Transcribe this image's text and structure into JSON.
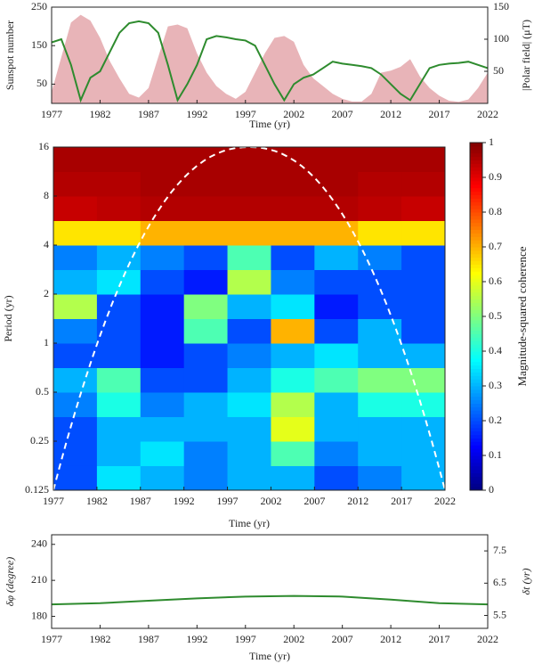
{
  "chart_data": [
    {
      "type": "line",
      "x": [
        1977,
        1978,
        1979,
        1980,
        1981,
        1982,
        1983,
        1984,
        1985,
        1986,
        1987,
        1988,
        1989,
        1990,
        1991,
        1992,
        1993,
        1994,
        1995,
        1996,
        1997,
        1998,
        1999,
        2000,
        2001,
        2002,
        2003,
        2004,
        2005,
        2006,
        2007,
        2008,
        2009,
        2010,
        2011,
        2012,
        2013,
        2014,
        2015,
        2016,
        2017,
        2018,
        2019,
        2020,
        2021,
        2022
      ],
      "series": [
        {
          "name": "Sunspot number",
          "color": "#e8b4b8",
          "fill": true,
          "values": [
            30,
            120,
            210,
            230,
            215,
            170,
            110,
            65,
            25,
            15,
            40,
            120,
            200,
            205,
            195,
            130,
            80,
            45,
            25,
            12,
            30,
            80,
            130,
            170,
            175,
            160,
            100,
            65,
            45,
            25,
            12,
            5,
            5,
            25,
            80,
            85,
            95,
            115,
            70,
            40,
            20,
            7,
            4,
            10,
            40,
            80
          ]
        },
        {
          "name": "|Polar field| (μT)",
          "color": "#2e8b2e",
          "axis": "y2",
          "values": [
            95,
            100,
            60,
            5,
            40,
            50,
            80,
            110,
            125,
            128,
            125,
            110,
            60,
            5,
            30,
            60,
            100,
            105,
            103,
            100,
            98,
            90,
            60,
            30,
            5,
            30,
            40,
            45,
            55,
            65,
            62,
            60,
            58,
            55,
            45,
            30,
            15,
            5,
            30,
            55,
            60,
            62,
            63,
            65,
            60,
            55
          ]
        }
      ],
      "xlabel": "Time (yr)",
      "xlim": [
        1977,
        2022
      ],
      "xticks": [
        1977,
        1982,
        1987,
        1992,
        1997,
        2002,
        2007,
        2012,
        2017,
        2022
      ],
      "ylim": [
        0,
        250
      ],
      "yticks": [
        50,
        150,
        250
      ],
      "y2lim": [
        0,
        150
      ],
      "y2ticks": [
        50,
        100,
        150
      ]
    },
    {
      "type": "heatmap",
      "xlabel": "Time (yr)",
      "ylabel": "Period (yr)",
      "xlim": [
        1977,
        2022
      ],
      "xticks": [
        1977,
        1982,
        1987,
        1992,
        1997,
        2002,
        2007,
        2012,
        2017,
        2022
      ],
      "xedges": [
        1977,
        1982,
        1987,
        1992,
        1997,
        2002,
        2007,
        2012,
        2017,
        2022
      ],
      "ylim": [
        0.125,
        16
      ],
      "log_scale": true,
      "yticks": [
        0.125,
        0.25,
        0.5,
        1,
        2,
        4,
        8,
        16
      ],
      "yedges": [
        0.125,
        0.1768,
        0.25,
        0.3536,
        0.5,
        0.7071,
        1,
        1.4142,
        2,
        2.8284,
        4,
        5.6569,
        8,
        11.3137,
        16
      ],
      "z": [
        [
          0.2,
          0.35,
          0.3,
          0.25,
          0.3,
          0.3,
          0.2,
          0.25,
          0.3
        ],
        [
          0.2,
          0.3,
          0.35,
          0.25,
          0.3,
          0.45,
          0.25,
          0.3,
          0.3
        ],
        [
          0.2,
          0.3,
          0.3,
          0.3,
          0.3,
          0.6,
          0.3,
          0.3,
          0.3
        ],
        [
          0.25,
          0.4,
          0.25,
          0.3,
          0.35,
          0.55,
          0.3,
          0.4,
          0.4
        ],
        [
          0.3,
          0.45,
          0.2,
          0.2,
          0.3,
          0.4,
          0.45,
          0.5,
          0.5
        ],
        [
          0.2,
          0.2,
          0.15,
          0.2,
          0.25,
          0.3,
          0.35,
          0.3,
          0.3
        ],
        [
          0.25,
          0.2,
          0.15,
          0.45,
          0.2,
          0.7,
          0.2,
          0.3,
          0.2
        ],
        [
          0.55,
          0.2,
          0.15,
          0.5,
          0.3,
          0.35,
          0.15,
          0.2,
          0.2
        ],
        [
          0.3,
          0.35,
          0.2,
          0.15,
          0.55,
          0.25,
          0.2,
          0.2,
          0.2
        ],
        [
          0.25,
          0.3,
          0.25,
          0.2,
          0.45,
          0.2,
          0.3,
          0.25,
          0.2
        ],
        [
          0.65,
          0.65,
          0.7,
          0.7,
          0.7,
          0.7,
          0.7,
          0.65,
          0.65
        ],
        [
          0.93,
          0.94,
          0.95,
          0.95,
          0.95,
          0.95,
          0.95,
          0.94,
          0.93
        ],
        [
          0.95,
          0.95,
          0.96,
          0.96,
          0.96,
          0.96,
          0.96,
          0.95,
          0.95
        ],
        [
          0.96,
          0.96,
          0.96,
          0.96,
          0.96,
          0.96,
          0.96,
          0.96,
          0.96
        ]
      ],
      "colorbar_label": "Magnitude-squared coherence",
      "clim": [
        0,
        1
      ],
      "cticks": [
        0,
        0.1,
        0.2,
        0.3,
        0.4,
        0.5,
        0.6,
        0.7,
        0.8,
        0.9,
        1
      ]
    },
    {
      "type": "line",
      "x": [
        1977,
        1982,
        1987,
        1992,
        1997,
        2002,
        2007,
        2012,
        2017,
        2022
      ],
      "series": [
        {
          "name": "δφ (degree)",
          "color": "#2e8b2e",
          "values": [
            190,
            191,
            193,
            195,
            196.5,
            197,
            196.5,
            194,
            191,
            190
          ]
        }
      ],
      "xlabel": "Time (yr)",
      "y2label": "δt (yr)",
      "xlim": [
        1977,
        2022
      ],
      "xticks": [
        1977,
        1982,
        1987,
        1992,
        1997,
        2002,
        2007,
        2012,
        2017,
        2022
      ],
      "ylim": [
        170,
        248
      ],
      "yticks": [
        180,
        210,
        240
      ],
      "y2lim": [
        5.1,
        8
      ],
      "y2ticks": [
        5.5,
        6.5,
        7.5
      ]
    }
  ]
}
